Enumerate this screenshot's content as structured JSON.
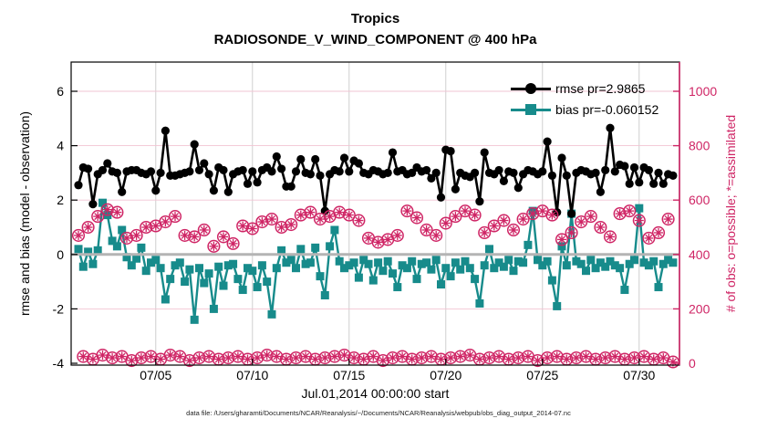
{
  "header": {
    "title": "Tropics",
    "subtitle": "RADIOSONDE_V_WIND_COMPONENT @ 400 hPa"
  },
  "caption": "data file: /Users/gharamti/Documents/NCAR/Reanalysis/~/Documents/NCAR/Reanalysis/webpub/obs_diag_output_2014-07.nc",
  "colors": {
    "rmse": "#000000",
    "bias": "#178b8b",
    "obs": "#cf2565",
    "grid_pink": "#f2c4d3",
    "grid_gray": "#c9c9c9",
    "zero_line": "#b4b4b4",
    "axis_black": "#000000"
  },
  "legend": {
    "rmse_label": "rmse pr=2.9865",
    "bias_label": "bias pr=-0.060152"
  },
  "chart_data": {
    "type": "line",
    "title": "Tropics",
    "subtitle": "RADIOSONDE_V_WIND_COMPONENT @ 400 hPa",
    "xlabel": "Jul.01,2014 00:00:00 start",
    "ylabel_left": "rmse and bias (model - observation)",
    "ylabel_right": "# of obs: o=possible; *=assimilated",
    "grid": true,
    "legend_position": "top-right-inside",
    "ylim_left": [
      -4.1,
      7.1
    ],
    "ylim_right": [
      0,
      1000
    ],
    "xlim_days": [
      -0.4,
      31.1
    ],
    "left_ticks": [
      6,
      4,
      2,
      0,
      -2,
      -4
    ],
    "right_ticks": [
      1000,
      800,
      600,
      400,
      200,
      0
    ],
    "x_tick_days": [
      4,
      9,
      14,
      19,
      24,
      29
    ],
    "x_tick_labels": [
      "07/05",
      "07/10",
      "07/15",
      "07/20",
      "07/25",
      "07/30"
    ],
    "time_step_days": 0.25,
    "start_day": 0,
    "series": [
      {
        "name": "rmse pr=2.9865",
        "axis": "left",
        "marker": "filled-circle",
        "values": [
          2.55,
          3.2,
          3.15,
          1.85,
          2.95,
          3.1,
          3.35,
          3.05,
          3.0,
          2.3,
          3.05,
          3.1,
          3.1,
          3.0,
          2.95,
          3.05,
          2.35,
          3.0,
          4.55,
          2.9,
          2.9,
          2.95,
          3.0,
          3.05,
          4.05,
          3.1,
          3.35,
          2.95,
          2.35,
          3.2,
          3.1,
          2.3,
          2.95,
          3.05,
          3.1,
          2.6,
          3.05,
          2.65,
          3.1,
          3.2,
          3.05,
          3.6,
          3.15,
          2.5,
          2.5,
          3.05,
          3.5,
          3.0,
          2.95,
          3.5,
          2.9,
          1.6,
          2.95,
          3.1,
          3.05,
          3.55,
          3.05,
          3.45,
          3.35,
          3.0,
          2.95,
          3.1,
          3.05,
          2.95,
          3.0,
          3.75,
          3.05,
          3.1,
          2.95,
          3.0,
          3.2,
          3.05,
          3.1,
          2.8,
          3.0,
          2.1,
          3.85,
          3.8,
          2.4,
          3.0,
          2.9,
          2.85,
          3.0,
          1.95,
          3.75,
          3.0,
          2.95,
          3.1,
          2.7,
          3.05,
          3.0,
          2.45,
          2.95,
          3.1,
          3.05,
          2.95,
          3.05,
          4.15,
          2.9,
          1.55,
          3.55,
          2.9,
          1.5,
          3.0,
          3.1,
          3.05,
          2.95,
          3.0,
          2.3,
          3.1,
          4.65,
          3.05,
          3.3,
          3.25,
          2.6,
          3.2,
          2.65,
          3.2,
          3.1,
          2.6,
          3.0,
          2.6,
          2.95,
          2.9
        ]
      },
      {
        "name": "bias pr=-0.060152",
        "axis": "left",
        "marker": "filled-square",
        "values": [
          0.2,
          -0.45,
          0.1,
          -0.35,
          0.15,
          1.9,
          1.45,
          0.5,
          0.3,
          0.9,
          -0.1,
          -0.4,
          -0.15,
          0.25,
          -0.6,
          -0.3,
          -0.2,
          -0.5,
          -1.65,
          -0.9,
          -0.4,
          -0.3,
          -1.0,
          -0.55,
          -2.4,
          -0.5,
          -1.05,
          -0.7,
          -2.0,
          -0.45,
          -1.15,
          -0.4,
          -0.35,
          -0.9,
          -1.3,
          -0.5,
          -0.6,
          -1.2,
          -0.4,
          -1.0,
          -2.2,
          -0.5,
          0.15,
          -0.3,
          -0.2,
          -0.5,
          0.2,
          -0.35,
          -0.3,
          0.25,
          -0.8,
          -1.5,
          0.3,
          0.9,
          -0.25,
          -0.5,
          -0.4,
          -0.3,
          -0.85,
          -0.2,
          -0.35,
          -0.95,
          -0.3,
          -0.6,
          -0.25,
          -0.7,
          -1.2,
          -0.4,
          -0.5,
          -0.25,
          -0.9,
          -0.35,
          -0.3,
          -0.55,
          -0.2,
          -1.1,
          -0.5,
          -0.8,
          -0.3,
          -0.55,
          -0.25,
          -0.5,
          -0.9,
          -1.8,
          -0.4,
          0.2,
          -0.5,
          -0.3,
          -0.45,
          -0.2,
          -0.6,
          -0.25,
          -0.3,
          0.35,
          1.6,
          -0.2,
          -0.4,
          -0.25,
          -0.95,
          -1.9,
          0.3,
          -0.4,
          1.5,
          -0.25,
          -0.35,
          -0.6,
          -0.2,
          -0.5,
          -0.3,
          -0.45,
          -0.25,
          -0.4,
          -0.5,
          -1.3,
          -0.35,
          -0.2,
          1.7,
          -0.3,
          -0.4,
          -0.25,
          -1.2,
          -0.35,
          -0.2,
          -0.3
        ]
      },
      {
        "name": "obs possible",
        "axis": "right",
        "marker": "open-circle",
        "values": [
          470,
          25,
          500,
          15,
          540,
          30,
          565,
          20,
          555,
          25,
          460,
          10,
          470,
          20,
          500,
          25,
          505,
          15,
          520,
          30,
          540,
          25,
          470,
          10,
          465,
          20,
          490,
          25,
          430,
          15,
          465,
          20,
          440,
          25,
          505,
          15,
          495,
          20,
          520,
          30,
          530,
          25,
          500,
          15,
          510,
          20,
          545,
          25,
          555,
          15,
          530,
          20,
          540,
          25,
          555,
          30,
          545,
          20,
          525,
          15,
          460,
          25,
          445,
          10,
          455,
          20,
          470,
          25,
          560,
          15,
          535,
          20,
          490,
          25,
          470,
          15,
          515,
          20,
          540,
          25,
          560,
          30,
          545,
          15,
          480,
          20,
          505,
          25,
          525,
          15,
          490,
          20,
          530,
          25,
          550,
          10,
          560,
          20,
          545,
          25,
          455,
          15,
          480,
          20,
          520,
          25,
          540,
          15,
          500,
          20,
          465,
          25,
          550,
          15,
          560,
          20,
          525,
          25,
          460,
          15,
          480,
          20,
          530,
          5
        ]
      },
      {
        "name": "obs assimilated",
        "axis": "right",
        "marker": "asterisk",
        "values": [
          470,
          25,
          500,
          15,
          540,
          30,
          565,
          20,
          555,
          25,
          460,
          10,
          470,
          20,
          500,
          25,
          505,
          15,
          520,
          30,
          540,
          25,
          470,
          10,
          465,
          20,
          490,
          25,
          430,
          15,
          465,
          20,
          440,
          25,
          505,
          15,
          495,
          20,
          520,
          30,
          530,
          25,
          500,
          15,
          510,
          20,
          545,
          25,
          555,
          15,
          530,
          20,
          540,
          25,
          555,
          30,
          545,
          20,
          525,
          15,
          460,
          25,
          445,
          10,
          455,
          20,
          470,
          25,
          560,
          15,
          535,
          20,
          490,
          25,
          470,
          15,
          515,
          20,
          540,
          25,
          560,
          30,
          545,
          15,
          480,
          20,
          505,
          25,
          525,
          15,
          490,
          20,
          530,
          25,
          550,
          10,
          560,
          20,
          545,
          25,
          455,
          15,
          480,
          20,
          520,
          25,
          540,
          15,
          500,
          20,
          465,
          25,
          550,
          15,
          560,
          20,
          525,
          25,
          460,
          15,
          480,
          20,
          530,
          5
        ]
      }
    ]
  }
}
